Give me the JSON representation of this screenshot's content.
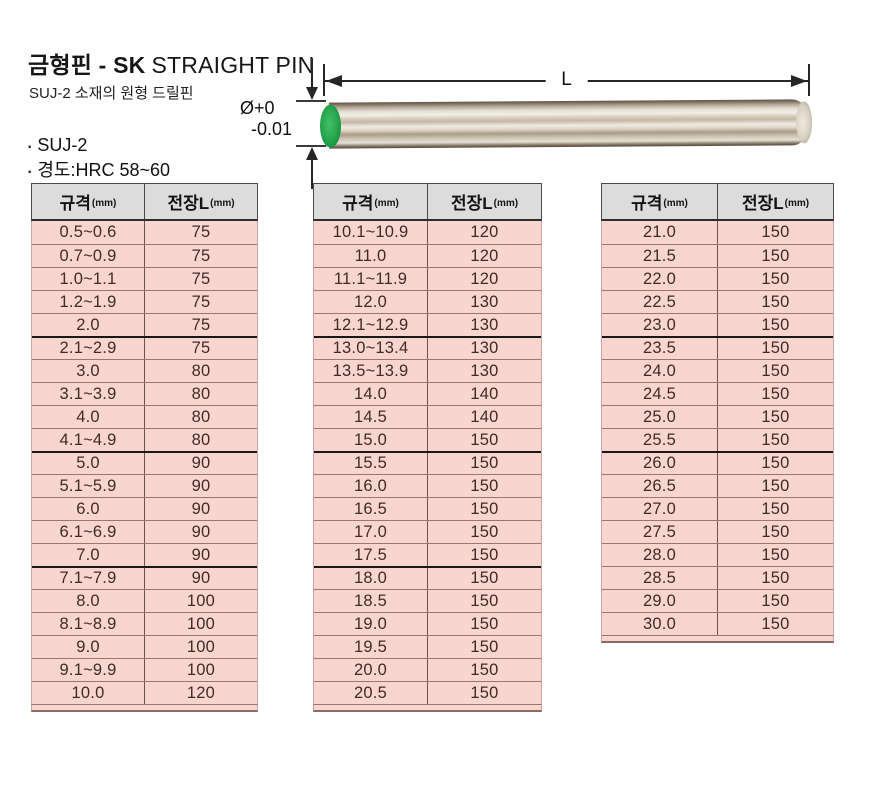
{
  "page": {
    "title_main": "금형핀 - SK",
    "title_sub": "STRAIGHT PIN",
    "subtitle": "SUJ-2 소재의 원형 드릴핀",
    "bullet_symbol": "·",
    "bullet_1": "SUJ-2",
    "bullet_2": "경도:HRC 58~60"
  },
  "diagram": {
    "length_label": "L",
    "dia_line1": "Ø+0",
    "dia_line2": "-0.01"
  },
  "table_header": {
    "col_spec": "규격",
    "col_length": "전장L",
    "unit": "(mm)"
  },
  "colors": {
    "row_pink": "#f9d5d0",
    "header_gray": "#dcdcdc",
    "pin_end_green": "#1f9e46"
  },
  "tables": [
    {
      "rows": [
        [
          "0.5~0.6",
          "75"
        ],
        [
          "0.7~0.9",
          "75"
        ],
        [
          "1.0~1.1",
          "75"
        ],
        [
          "1.2~1.9",
          "75"
        ],
        [
          "2.0",
          "75"
        ],
        [
          "2.1~2.9",
          "75"
        ],
        [
          "3.0",
          "80"
        ],
        [
          "3.1~3.9",
          "80"
        ],
        [
          "4.0",
          "80"
        ],
        [
          "4.1~4.9",
          "80"
        ],
        [
          "5.0",
          "90"
        ],
        [
          "5.1~5.9",
          "90"
        ],
        [
          "6.0",
          "90"
        ],
        [
          "6.1~6.9",
          "90"
        ],
        [
          "7.0",
          "90"
        ],
        [
          "7.1~7.9",
          "90"
        ],
        [
          "8.0",
          "100"
        ],
        [
          "8.1~8.9",
          "100"
        ],
        [
          "9.0",
          "100"
        ],
        [
          "9.1~9.9",
          "100"
        ],
        [
          "10.0",
          "120"
        ]
      ],
      "group_breaks": [
        5,
        10,
        15
      ]
    },
    {
      "rows": [
        [
          "10.1~10.9",
          "120"
        ],
        [
          "11.0",
          "120"
        ],
        [
          "11.1~11.9",
          "120"
        ],
        [
          "12.0",
          "130"
        ],
        [
          "12.1~12.9",
          "130"
        ],
        [
          "13.0~13.4",
          "130"
        ],
        [
          "13.5~13.9",
          "130"
        ],
        [
          "14.0",
          "140"
        ],
        [
          "14.5",
          "140"
        ],
        [
          "15.0",
          "150"
        ],
        [
          "15.5",
          "150"
        ],
        [
          "16.0",
          "150"
        ],
        [
          "16.5",
          "150"
        ],
        [
          "17.0",
          "150"
        ],
        [
          "17.5",
          "150"
        ],
        [
          "18.0",
          "150"
        ],
        [
          "18.5",
          "150"
        ],
        [
          "19.0",
          "150"
        ],
        [
          "19.5",
          "150"
        ],
        [
          "20.0",
          "150"
        ],
        [
          "20.5",
          "150"
        ]
      ],
      "group_breaks": [
        5,
        10,
        15
      ]
    },
    {
      "rows": [
        [
          "21.0",
          "150"
        ],
        [
          "21.5",
          "150"
        ],
        [
          "22.0",
          "150"
        ],
        [
          "22.5",
          "150"
        ],
        [
          "23.0",
          "150"
        ],
        [
          "23.5",
          "150"
        ],
        [
          "24.0",
          "150"
        ],
        [
          "24.5",
          "150"
        ],
        [
          "25.0",
          "150"
        ],
        [
          "25.5",
          "150"
        ],
        [
          "26.0",
          "150"
        ],
        [
          "26.5",
          "150"
        ],
        [
          "27.0",
          "150"
        ],
        [
          "27.5",
          "150"
        ],
        [
          "28.0",
          "150"
        ],
        [
          "28.5",
          "150"
        ],
        [
          "29.0",
          "150"
        ],
        [
          "30.0",
          "150"
        ]
      ],
      "group_breaks": [
        5,
        10
      ]
    }
  ]
}
